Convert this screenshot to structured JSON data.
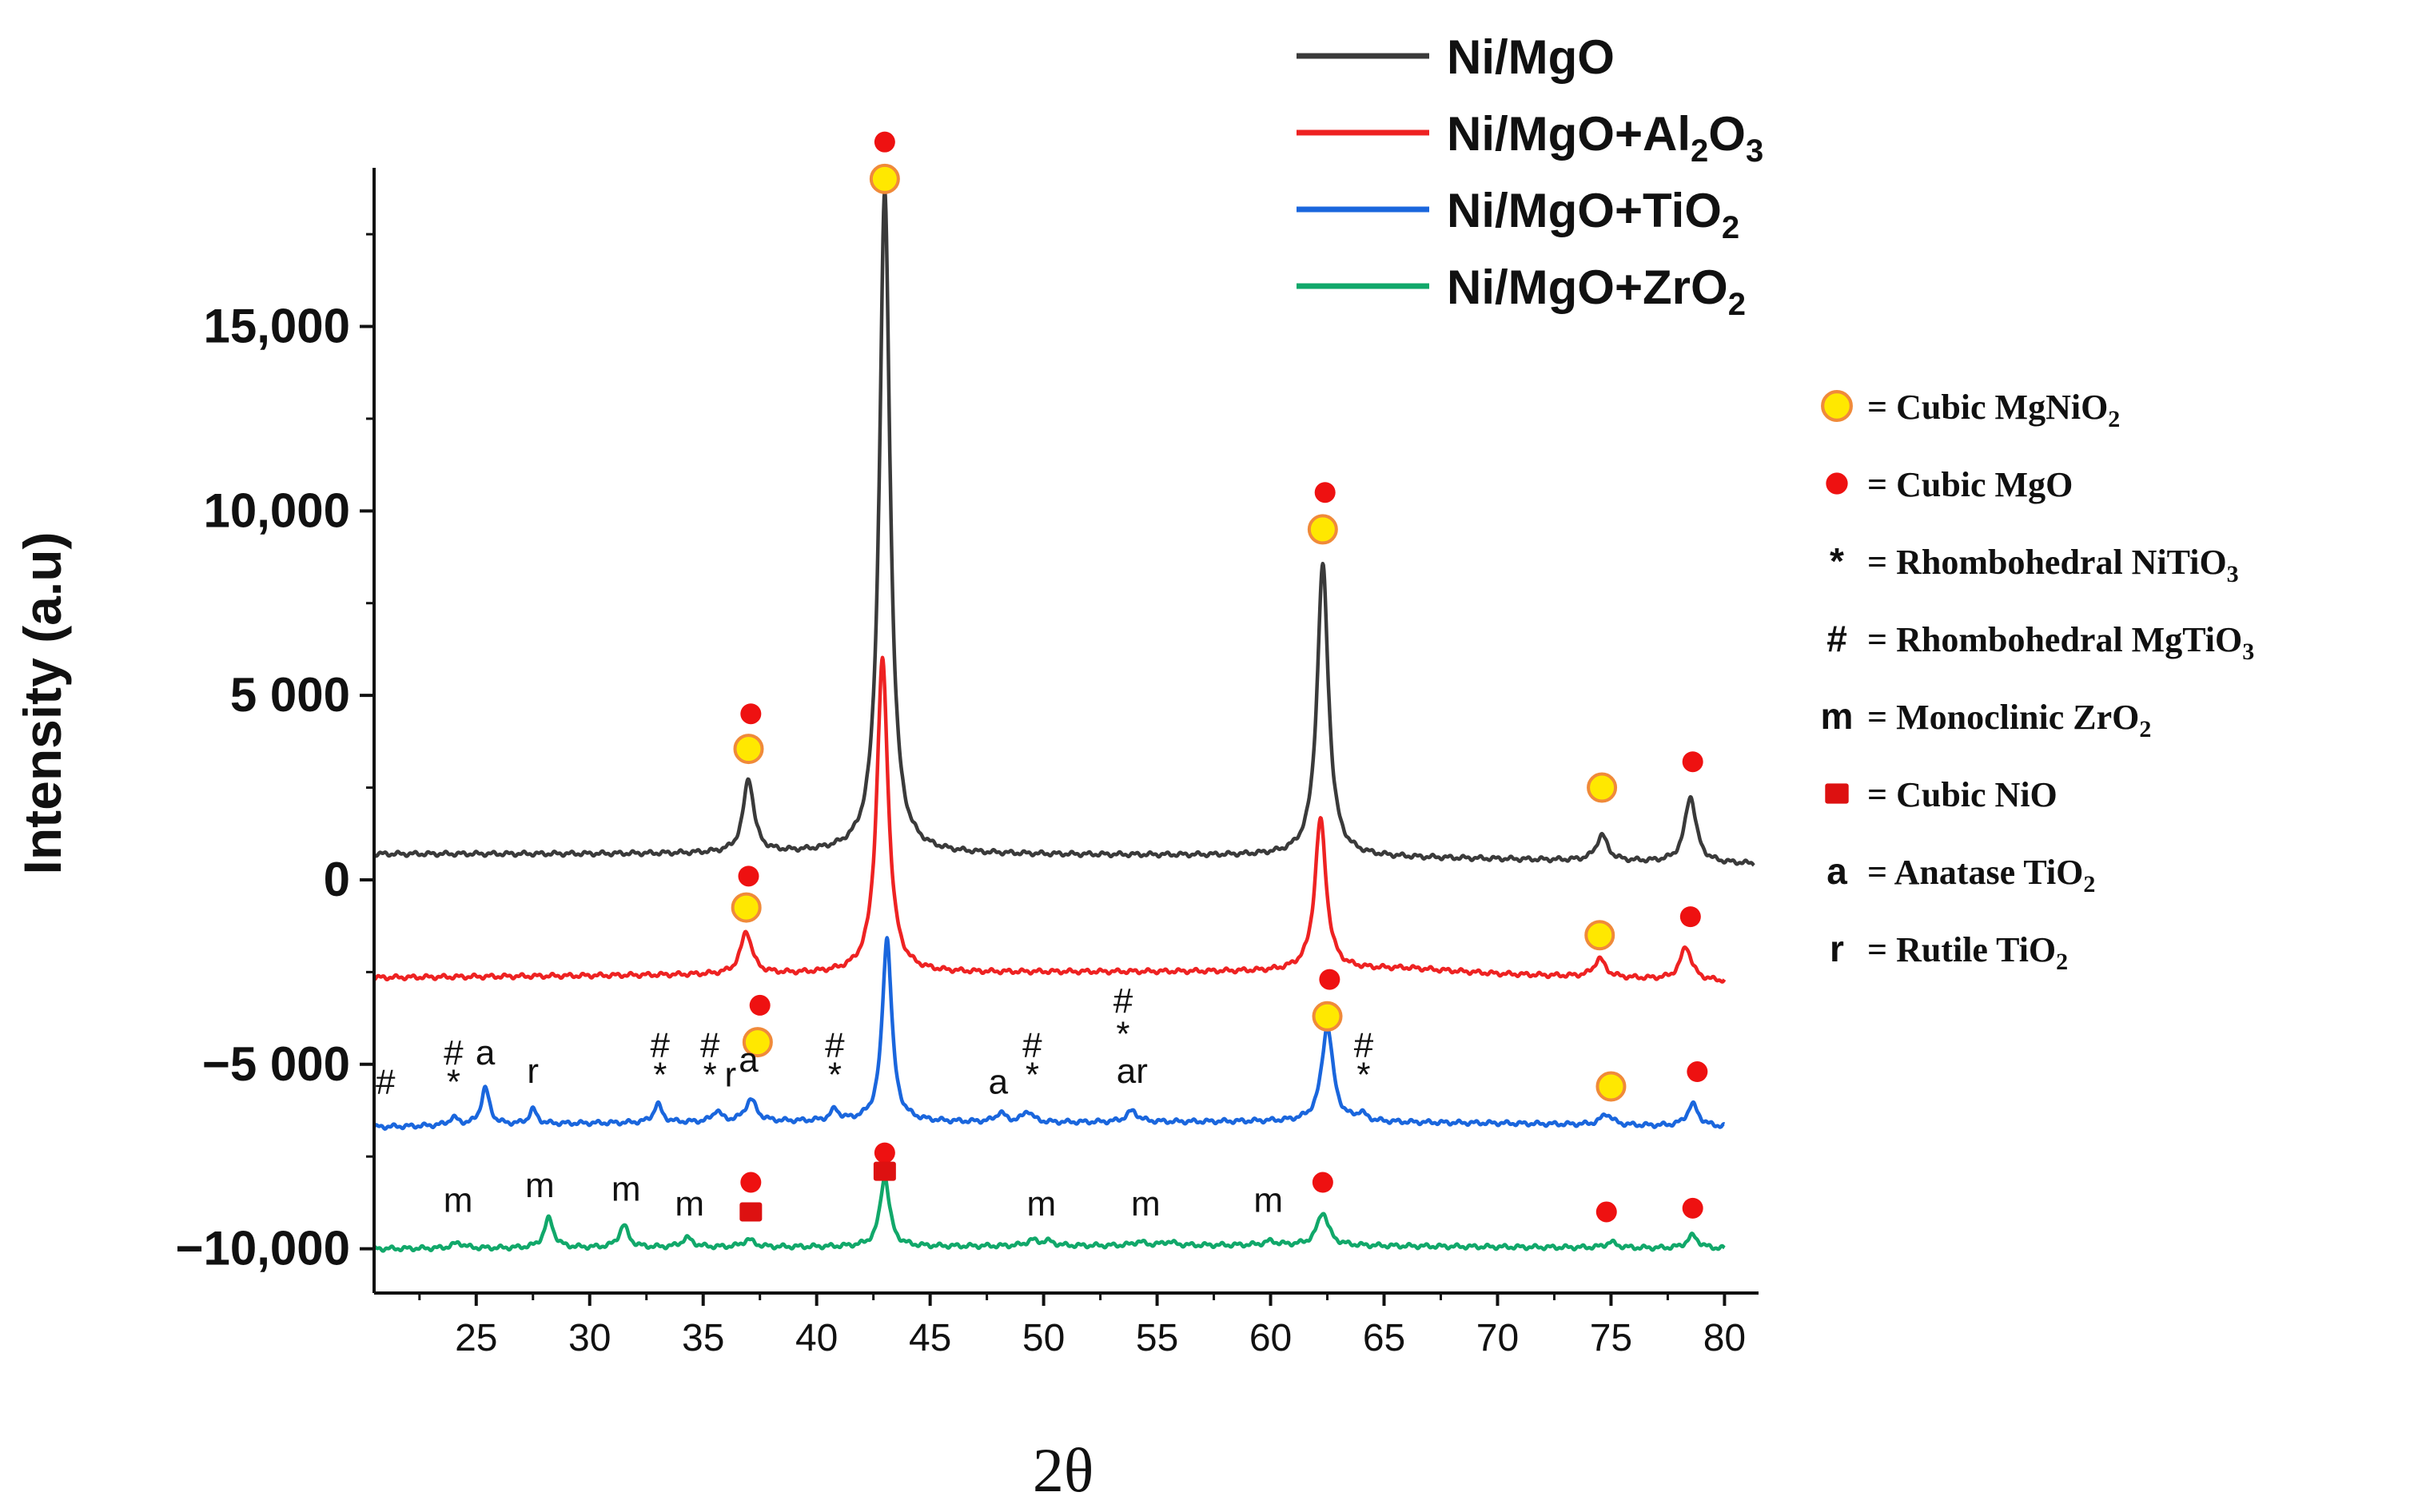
{
  "chart_data": {
    "type": "line",
    "xlabel": "2θ",
    "ylabel": "Intensity (a.u)",
    "xlim": [
      20.5,
      81.5
    ],
    "ylim": [
      -11200,
      19300
    ],
    "x_ticks": [
      25,
      30,
      35,
      40,
      45,
      50,
      55,
      60,
      65,
      70,
      75,
      80
    ],
    "y_ticks": [
      {
        "value": 15000,
        "label": "15,000"
      },
      {
        "value": 10000,
        "label": "10,000"
      },
      {
        "value": 5000,
        "label": "5 000"
      },
      {
        "value": 0,
        "label": "0"
      },
      {
        "value": -5000,
        "label": "−5 000"
      },
      {
        "value": -10000,
        "label": "−10,000"
      }
    ],
    "series": [
      {
        "name": "Ni/MgO",
        "color": "#3a3a3a",
        "x_start": 20.5,
        "x_end": 81.3,
        "baseline": [
          [
            20.5,
            700
          ],
          [
            30,
            700
          ],
          [
            40,
            720
          ],
          [
            50,
            680
          ],
          [
            60,
            650
          ],
          [
            70,
            560
          ],
          [
            81.3,
            430
          ]
        ],
        "peaks": [
          [
            37.0,
            2000,
            0.28
          ],
          [
            43.0,
            17900,
            0.28
          ],
          [
            62.3,
            7900,
            0.3
          ],
          [
            74.6,
            700,
            0.3
          ],
          [
            78.5,
            1800,
            0.3
          ]
        ]
      },
      {
        "name": "Ni/MgO+Al₂O₃",
        "color": "#ee2222",
        "x_start": 20.5,
        "x_end": 80.0,
        "baseline": [
          [
            20.5,
            -2650
          ],
          [
            30,
            -2600
          ],
          [
            40,
            -2550
          ],
          [
            50,
            -2500
          ],
          [
            60,
            -2480
          ],
          [
            66,
            -2400
          ],
          [
            70,
            -2550
          ],
          [
            80,
            -2750
          ]
        ],
        "peaks": [
          [
            36.9,
            1150,
            0.3
          ],
          [
            42.9,
            8500,
            0.3
          ],
          [
            62.2,
            4100,
            0.3
          ],
          [
            74.5,
            500,
            0.3
          ],
          [
            78.3,
            900,
            0.3
          ]
        ]
      },
      {
        "name": "Ni/MgO+TiO₂",
        "color": "#1a66dd",
        "x_start": 20.5,
        "x_end": 80.0,
        "baseline": [
          [
            20.5,
            -6700
          ],
          [
            30,
            -6600
          ],
          [
            40,
            -6550
          ],
          [
            50,
            -6580
          ],
          [
            60,
            -6550
          ],
          [
            70,
            -6600
          ],
          [
            80,
            -6700
          ]
        ],
        "peaks": [
          [
            24.0,
            200,
            0.25
          ],
          [
            25.4,
            1000,
            0.22
          ],
          [
            27.5,
            400,
            0.2
          ],
          [
            33.0,
            500,
            0.22
          ],
          [
            35.6,
            300,
            0.22
          ],
          [
            37.1,
            600,
            0.3
          ],
          [
            40.8,
            300,
            0.22
          ],
          [
            43.1,
            5000,
            0.25
          ],
          [
            48.1,
            250,
            0.25
          ],
          [
            49.3,
            300,
            0.25
          ],
          [
            53.9,
            300,
            0.3
          ],
          [
            62.5,
            2600,
            0.3
          ],
          [
            64.0,
            200,
            0.25
          ],
          [
            74.8,
            300,
            0.3
          ],
          [
            78.6,
            600,
            0.3
          ]
        ]
      },
      {
        "name": "Ni/MgO+ZrO₂",
        "color": "#11a86a",
        "x_start": 20.5,
        "x_end": 80.0,
        "baseline": [
          [
            20.5,
            -10000
          ],
          [
            40,
            -9950
          ],
          [
            60,
            -9900
          ],
          [
            80,
            -10000
          ]
        ],
        "peaks": [
          [
            24.2,
            150,
            0.3
          ],
          [
            28.2,
            800,
            0.25
          ],
          [
            31.5,
            600,
            0.25
          ],
          [
            34.3,
            250,
            0.3
          ],
          [
            37.0,
            200,
            0.3
          ],
          [
            43.0,
            1900,
            0.25
          ],
          [
            49.5,
            150,
            0.3
          ],
          [
            50.2,
            120,
            0.3
          ],
          [
            54.2,
            100,
            0.3
          ],
          [
            55.5,
            100,
            0.3
          ],
          [
            60.0,
            100,
            0.3
          ],
          [
            62.3,
            900,
            0.3
          ],
          [
            75.0,
            150,
            0.3
          ],
          [
            78.6,
            350,
            0.3
          ]
        ]
      }
    ],
    "legend": {
      "placement": "top-right",
      "entries": [
        {
          "base": "Ni/MgO",
          "parts": []
        },
        {
          "base": "Ni/MgO+Al",
          "parts": [
            [
              "2",
              "sub"
            ],
            [
              "O",
              "n"
            ],
            [
              "3",
              "sub"
            ]
          ]
        },
        {
          "base": "Ni/MgO+TiO",
          "parts": [
            [
              "2",
              "sub"
            ]
          ]
        },
        {
          "base": "Ni/MgO+ZrO",
          "parts": [
            [
              "2",
              "sub"
            ]
          ]
        }
      ]
    },
    "phase_key": {
      "placement": "right",
      "entries": [
        {
          "symbol": "circle-yellow",
          "text": "= Cubic MgNiO",
          "sub": "2"
        },
        {
          "symbol": "dot-red",
          "text": "= Cubic  MgO",
          "sub": ""
        },
        {
          "symbol": "*",
          "text": "= Rhombohedral NiTiO",
          "sub": "3"
        },
        {
          "symbol": "#",
          "text": "= Rhombohedral MgTiO",
          "sub": "3"
        },
        {
          "symbol": "m",
          "text": "= Monoclinic ZrO",
          "sub": "2"
        },
        {
          "symbol": "square-red",
          "text": "= Cubic NiO",
          "sub": ""
        },
        {
          "symbol": "a",
          "text": "= Anatase TiO",
          "sub": "2"
        },
        {
          "symbol": "r",
          "text": "= Rutile TiO",
          "sub": "2"
        }
      ]
    },
    "peak_markers": [
      {
        "type": "dot-red",
        "x": 37.1,
        "y": 4500
      },
      {
        "type": "circle-yellow",
        "x": 37.0,
        "y": 3550
      },
      {
        "type": "dot-red",
        "x": 43.0,
        "y": 20000
      },
      {
        "type": "circle-yellow",
        "x": 43.0,
        "y": 19000
      },
      {
        "type": "dot-red",
        "x": 62.4,
        "y": 10500
      },
      {
        "type": "circle-yellow",
        "x": 62.3,
        "y": 9500
      },
      {
        "type": "circle-yellow",
        "x": 74.6,
        "y": 2500
      },
      {
        "type": "dot-red",
        "x": 78.6,
        "y": 3200
      },
      {
        "type": "dot-red",
        "x": 37.0,
        "y": 100
      },
      {
        "type": "circle-yellow",
        "x": 36.9,
        "y": -750
      },
      {
        "type": "circle-yellow",
        "x": 74.5,
        "y": -1500
      },
      {
        "type": "dot-red",
        "x": 78.5,
        "y": -1000
      },
      {
        "type": "dot-red",
        "x": 37.5,
        "y": -3400
      },
      {
        "type": "circle-yellow",
        "x": 37.4,
        "y": -4400
      },
      {
        "type": "dot-red",
        "x": 62.6,
        "y": -2700
      },
      {
        "type": "circle-yellow",
        "x": 62.5,
        "y": -3700
      },
      {
        "type": "circle-yellow",
        "x": 75.0,
        "y": -5600
      },
      {
        "type": "dot-red",
        "x": 78.8,
        "y": -5200
      },
      {
        "type": "dot-red",
        "x": 37.1,
        "y": -8200
      },
      {
        "type": "square-red",
        "x": 37.1,
        "y": -9000
      },
      {
        "type": "dot-red",
        "x": 43.0,
        "y": -7400
      },
      {
        "type": "square-red",
        "x": 43.0,
        "y": -7900
      },
      {
        "type": "dot-red",
        "x": 62.3,
        "y": -8200
      },
      {
        "type": "dot-red",
        "x": 74.8,
        "y": -9000
      },
      {
        "type": "dot-red",
        "x": 78.6,
        "y": -8900
      }
    ],
    "peak_labels": [
      {
        "text": "#",
        "x": 21.0,
        "y": -5800
      },
      {
        "text": "#",
        "x": 24.0,
        "y": -5000
      },
      {
        "text": "*",
        "x": 24.0,
        "y": -5800
      },
      {
        "text": "a",
        "x": 25.4,
        "y": -5000
      },
      {
        "text": "r",
        "x": 27.5,
        "y": -5500
      },
      {
        "text": "#",
        "x": 33.1,
        "y": -4800
      },
      {
        "text": "*",
        "x": 33.1,
        "y": -5600
      },
      {
        "text": "#",
        "x": 35.3,
        "y": -4800
      },
      {
        "text": "*",
        "x": 35.3,
        "y": -5600
      },
      {
        "text": "r",
        "x": 36.2,
        "y": -5600
      },
      {
        "text": "a",
        "x": 37.0,
        "y": -5200
      },
      {
        "text": "#",
        "x": 40.8,
        "y": -4800
      },
      {
        "text": "*",
        "x": 40.8,
        "y": -5600
      },
      {
        "text": "a",
        "x": 48.0,
        "y": -5800
      },
      {
        "text": "#",
        "x": 49.5,
        "y": -4800
      },
      {
        "text": "*",
        "x": 49.5,
        "y": -5600
      },
      {
        "text": "#",
        "x": 53.5,
        "y": -3600
      },
      {
        "text": "*",
        "x": 53.5,
        "y": -4500
      },
      {
        "text": "ar",
        "x": 53.9,
        "y": -5500
      },
      {
        "text": "#",
        "x": 64.1,
        "y": -4800
      },
      {
        "text": "*",
        "x": 64.1,
        "y": -5600
      },
      {
        "text": "m",
        "x": 24.2,
        "y": -9000
      },
      {
        "text": "m",
        "x": 27.8,
        "y": -8600
      },
      {
        "text": "m",
        "x": 31.6,
        "y": -8700
      },
      {
        "text": "m",
        "x": 34.4,
        "y": -9100
      },
      {
        "text": "m",
        "x": 49.9,
        "y": -9100
      },
      {
        "text": "m",
        "x": 54.5,
        "y": -9100
      },
      {
        "text": "m",
        "x": 59.9,
        "y": -9000
      }
    ]
  }
}
